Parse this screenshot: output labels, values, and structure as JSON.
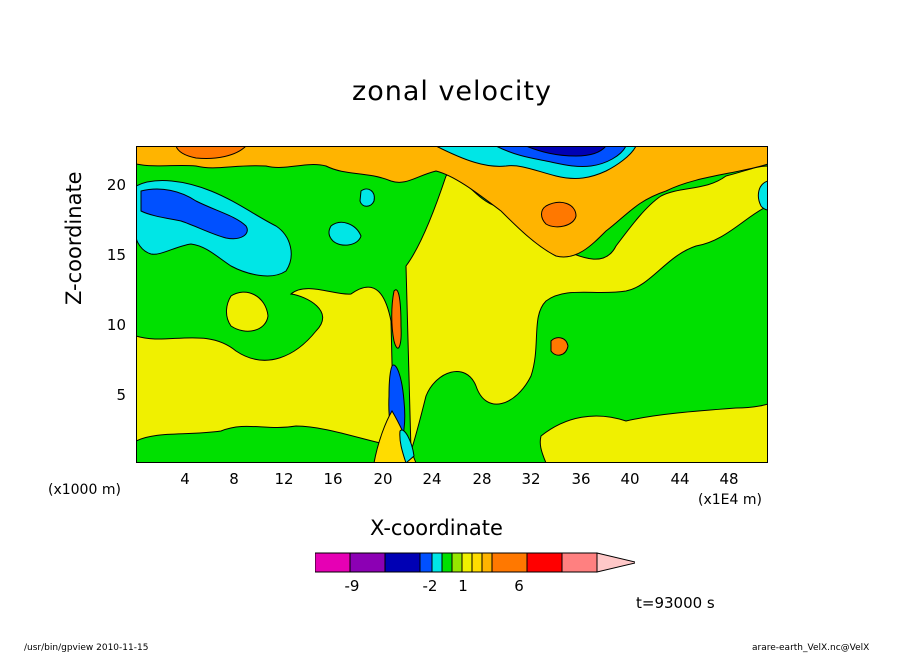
{
  "chart_data": {
    "type": "heatmap",
    "subtype": "filled-contour",
    "title": "zonal velocity",
    "xlabel": "X-coordinate",
    "ylabel": "Z-coordinate",
    "x_unit_label": "(x1E4 m)",
    "y_unit_label": "(x1000 m)",
    "xlim": [
      0,
      51
    ],
    "ylim": [
      0,
      23
    ],
    "x_ticks": [
      "4",
      "8",
      "12",
      "16",
      "20",
      "24",
      "28",
      "32",
      "36",
      "40",
      "44",
      "48"
    ],
    "y_ticks": [
      "5",
      "10",
      "15",
      "20"
    ],
    "colorbar": {
      "colors": [
        "#e600b4",
        "#8c00b4",
        "#0000b4",
        "#0050ff",
        "#00e6e6",
        "#00e000",
        "#96e600",
        "#f0f000",
        "#ffdc00",
        "#ffb400",
        "#ff7800",
        "#ff0000",
        "#ff8080",
        "#ffc8c8"
      ],
      "labels": [
        {
          "text": "-9",
          "value": -9
        },
        {
          "text": "-2",
          "value": -2
        },
        {
          "text": "1",
          "value": 1
        },
        {
          "text": "6",
          "value": 6
        }
      ]
    }
  },
  "timestamp": "t=93000 s",
  "footer": {
    "left": "/usr/bin/gpview  2010-11-15",
    "right": "arare-earth_VelX.nc@VelX"
  }
}
